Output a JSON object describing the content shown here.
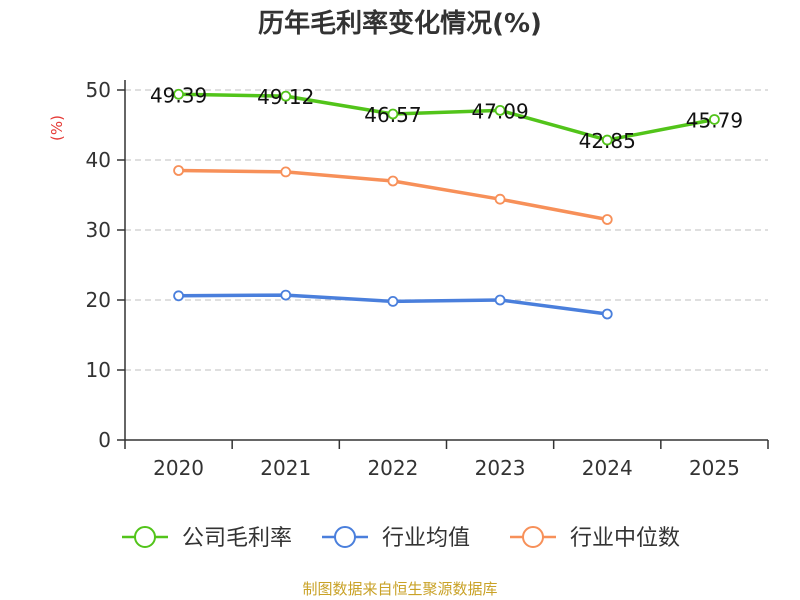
{
  "chart_data": {
    "type": "line",
    "title": "历年毛利率变化情况(%)",
    "ylabel": "(%)",
    "categories": [
      "2020",
      "2021",
      "2022",
      "2023",
      "2024",
      "2025"
    ],
    "ylim": [
      0,
      50
    ],
    "yticks": [
      "0",
      "10",
      "20",
      "30",
      "40",
      "50"
    ],
    "grid": true,
    "legend_position": "bottom",
    "series": [
      {
        "name": "公司毛利率",
        "color": "#52c41a",
        "values": [
          49.39,
          49.12,
          46.57,
          47.09,
          42.85,
          45.79
        ],
        "labels": [
          "49.39",
          "49.12",
          "46.57",
          "47.09",
          "42.85",
          "45.79"
        ]
      },
      {
        "name": "行业均值",
        "color": "#4a7fdc",
        "values": [
          20.6,
          20.7,
          19.8,
          20.0,
          18.0,
          null
        ]
      },
      {
        "name": "行业中位数",
        "color": "#f79059",
        "values": [
          38.5,
          38.3,
          37.0,
          34.4,
          31.5,
          null
        ]
      }
    ]
  },
  "source": "制图数据来自恒生聚源数据库"
}
